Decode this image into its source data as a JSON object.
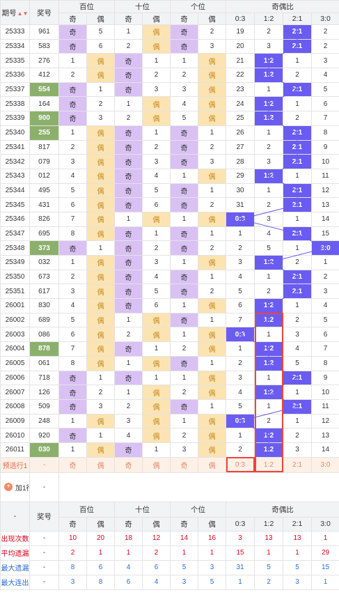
{
  "header": {
    "issue_label": "期号",
    "number_label": "奖号",
    "groups": [
      "百位",
      "十位",
      "个位",
      "奇偶比"
    ],
    "odd": "奇",
    "even": "偶",
    "ratios": [
      "0:3",
      "1:2",
      "2:1",
      "3:0"
    ]
  },
  "rows": [
    {
      "issue": "25333",
      "num": "961",
      "hl": false,
      "b": [
        "奇",
        "5"
      ],
      "s": [
        "1",
        "偶"
      ],
      "g": [
        "奇",
        "2"
      ],
      "r": [
        "19",
        "2",
        "2:1",
        "2"
      ],
      "hit": 2
    },
    {
      "issue": "25334",
      "num": "583",
      "hl": false,
      "b": [
        "奇",
        "6"
      ],
      "s": [
        "2",
        "偶"
      ],
      "g": [
        "奇",
        "3"
      ],
      "r": [
        "20",
        "3",
        "2:1",
        "2"
      ],
      "hit": 2
    },
    {
      "issue": "25335",
      "num": "276",
      "hl": false,
      "b": [
        "1",
        "偶"
      ],
      "s": [
        "奇",
        "1"
      ],
      "g": [
        "1",
        "偶"
      ],
      "r": [
        "21",
        "1:2",
        "1",
        "3"
      ],
      "hit": 1
    },
    {
      "issue": "25336",
      "num": "412",
      "hl": false,
      "b": [
        "2",
        "偶"
      ],
      "s": [
        "奇",
        "2"
      ],
      "g": [
        "2",
        "偶"
      ],
      "r": [
        "22",
        "1:2",
        "2",
        "4"
      ],
      "hit": 1
    },
    {
      "issue": "25337",
      "num": "554",
      "hl": true,
      "b": [
        "奇",
        "1"
      ],
      "s": [
        "奇",
        "3"
      ],
      "g": [
        "3",
        "偶"
      ],
      "r": [
        "23",
        "1",
        "2:1",
        "5"
      ],
      "hit": 2
    },
    {
      "issue": "25338",
      "num": "164",
      "hl": false,
      "b": [
        "奇",
        "2"
      ],
      "s": [
        "1",
        "偶"
      ],
      "g": [
        "4",
        "偶"
      ],
      "r": [
        "24",
        "1:2",
        "1",
        "6"
      ],
      "hit": 1,
      "sep": true
    },
    {
      "issue": "25339",
      "num": "900",
      "hl": true,
      "b": [
        "奇",
        "3"
      ],
      "s": [
        "2",
        "偶"
      ],
      "g": [
        "5",
        "偶"
      ],
      "r": [
        "25",
        "1:2",
        "2",
        "7"
      ],
      "hit": 1
    },
    {
      "issue": "25340",
      "num": "255",
      "hl": true,
      "b": [
        "1",
        "偶"
      ],
      "s": [
        "奇",
        "1"
      ],
      "g": [
        "奇",
        "1"
      ],
      "r": [
        "26",
        "1",
        "2:1",
        "8"
      ],
      "hit": 2
    },
    {
      "issue": "25341",
      "num": "817",
      "hl": false,
      "b": [
        "2",
        "偶"
      ],
      "s": [
        "奇",
        "2"
      ],
      "g": [
        "奇",
        "2"
      ],
      "r": [
        "27",
        "2",
        "2:1",
        "9"
      ],
      "hit": 2
    },
    {
      "issue": "25342",
      "num": "079",
      "hl": false,
      "b": [
        "3",
        "偶"
      ],
      "s": [
        "奇",
        "3"
      ],
      "g": [
        "奇",
        "3"
      ],
      "r": [
        "28",
        "3",
        "2:1",
        "10"
      ],
      "hit": 2
    },
    {
      "issue": "25343",
      "num": "012",
      "hl": false,
      "b": [
        "4",
        "偶"
      ],
      "s": [
        "奇",
        "4"
      ],
      "g": [
        "1",
        "偶"
      ],
      "r": [
        "29",
        "1:2",
        "1",
        "11"
      ],
      "hit": 1,
      "sep": true
    },
    {
      "issue": "25344",
      "num": "495",
      "hl": false,
      "b": [
        "5",
        "偶"
      ],
      "s": [
        "奇",
        "5"
      ],
      "g": [
        "奇",
        "1"
      ],
      "r": [
        "30",
        "1",
        "2:1",
        "12"
      ],
      "hit": 2
    },
    {
      "issue": "25345",
      "num": "431",
      "hl": false,
      "b": [
        "6",
        "偶"
      ],
      "s": [
        "奇",
        "6"
      ],
      "g": [
        "奇",
        "2"
      ],
      "r": [
        "31",
        "2",
        "2:1",
        "13"
      ],
      "hit": 2
    },
    {
      "issue": "25346",
      "num": "826",
      "hl": false,
      "b": [
        "7",
        "偶"
      ],
      "s": [
        "1",
        "偶"
      ],
      "g": [
        "1",
        "偶"
      ],
      "r": [
        "0:3",
        "3",
        "1",
        "14"
      ],
      "hit": 0
    },
    {
      "issue": "25347",
      "num": "695",
      "hl": false,
      "b": [
        "8",
        "偶"
      ],
      "s": [
        "奇",
        "1"
      ],
      "g": [
        "奇",
        "1"
      ],
      "r": [
        "1",
        "4",
        "2:1",
        "15"
      ],
      "hit": 2
    },
    {
      "issue": "25348",
      "num": "373",
      "hl": true,
      "b": [
        "奇",
        "1"
      ],
      "s": [
        "奇",
        "2"
      ],
      "g": [
        "奇",
        "2"
      ],
      "r": [
        "2",
        "5",
        "1",
        "3:0"
      ],
      "hit": 3,
      "sep": true
    },
    {
      "issue": "25349",
      "num": "032",
      "hl": false,
      "b": [
        "1",
        "偶"
      ],
      "s": [
        "奇",
        "3"
      ],
      "g": [
        "1",
        "偶"
      ],
      "r": [
        "3",
        "1:2",
        "2",
        "1"
      ],
      "hit": 1
    },
    {
      "issue": "25350",
      "num": "673",
      "hl": false,
      "b": [
        "2",
        "偶"
      ],
      "s": [
        "奇",
        "4"
      ],
      "g": [
        "奇",
        "1"
      ],
      "r": [
        "4",
        "1",
        "2:1",
        "2"
      ],
      "hit": 2
    },
    {
      "issue": "25351",
      "num": "617",
      "hl": false,
      "b": [
        "3",
        "偶"
      ],
      "s": [
        "奇",
        "5"
      ],
      "g": [
        "奇",
        "2"
      ],
      "r": [
        "5",
        "2",
        "2:1",
        "3"
      ],
      "hit": 2
    },
    {
      "issue": "26001",
      "num": "830",
      "hl": false,
      "b": [
        "4",
        "偶"
      ],
      "s": [
        "奇",
        "6"
      ],
      "g": [
        "1",
        "偶"
      ],
      "r": [
        "6",
        "1:2",
        "1",
        "4"
      ],
      "hit": 1
    },
    {
      "issue": "26002",
      "num": "689",
      "hl": false,
      "b": [
        "5",
        "偶"
      ],
      "s": [
        "1",
        "偶"
      ],
      "g": [
        "奇",
        "1"
      ],
      "r": [
        "7",
        "1:2",
        "2",
        "5"
      ],
      "hit": 1,
      "sep": true
    },
    {
      "issue": "26003",
      "num": "086",
      "hl": false,
      "b": [
        "6",
        "偶"
      ],
      "s": [
        "2",
        "偶"
      ],
      "g": [
        "1",
        "偶"
      ],
      "r": [
        "0:3",
        "1",
        "3",
        "6"
      ],
      "hit": 0
    },
    {
      "issue": "26004",
      "num": "878",
      "hl": true,
      "b": [
        "7",
        "偶"
      ],
      "s": [
        "奇",
        "1"
      ],
      "g": [
        "2",
        "偶"
      ],
      "r": [
        "1",
        "1:2",
        "4",
        "7"
      ],
      "hit": 1
    },
    {
      "issue": "26005",
      "num": "061",
      "hl": false,
      "b": [
        "8",
        "偶"
      ],
      "s": [
        "1",
        "偶"
      ],
      "g": [
        "奇",
        "1"
      ],
      "r": [
        "2",
        "1:2",
        "5",
        "8"
      ],
      "hit": 1
    },
    {
      "issue": "26006",
      "num": "718",
      "hl": false,
      "b": [
        "奇",
        "1"
      ],
      "s": [
        "奇",
        "1"
      ],
      "g": [
        "1",
        "偶"
      ],
      "r": [
        "3",
        "1",
        "2:1",
        "9"
      ],
      "hit": 2
    },
    {
      "issue": "26007",
      "num": "126",
      "hl": false,
      "b": [
        "奇",
        "2"
      ],
      "s": [
        "1",
        "偶"
      ],
      "g": [
        "2",
        "偶"
      ],
      "r": [
        "4",
        "1:2",
        "1",
        "10"
      ],
      "hit": 1,
      "sep": true
    },
    {
      "issue": "26008",
      "num": "509",
      "hl": false,
      "b": [
        "奇",
        "3"
      ],
      "s": [
        "2",
        "偶"
      ],
      "g": [
        "奇",
        "1"
      ],
      "r": [
        "5",
        "1",
        "2:1",
        "11"
      ],
      "hit": 2
    },
    {
      "issue": "26009",
      "num": "248",
      "hl": false,
      "b": [
        "1",
        "偶"
      ],
      "s": [
        "3",
        "偶"
      ],
      "g": [
        "1",
        "偶"
      ],
      "r": [
        "0:3",
        "2",
        "1",
        "12"
      ],
      "hit": 0
    },
    {
      "issue": "26010",
      "num": "920",
      "hl": false,
      "b": [
        "奇",
        "1"
      ],
      "s": [
        "4",
        "偶"
      ],
      "g": [
        "2",
        "偶"
      ],
      "r": [
        "1",
        "1:2",
        "2",
        "13"
      ],
      "hit": 1
    },
    {
      "issue": "26011",
      "num": "030",
      "hl": true,
      "b": [
        "1",
        "偶"
      ],
      "s": [
        "奇",
        "1"
      ],
      "g": [
        "3",
        "偶"
      ],
      "r": [
        "2",
        "1:2",
        "3",
        "14"
      ],
      "hit": 1
    }
  ],
  "predict": {
    "label": "预选行1",
    "num": "-",
    "cells": [
      "奇",
      "偶",
      "奇",
      "偶",
      "奇",
      "偶",
      "0:3",
      "1:2",
      "2:1",
      "3:0"
    ]
  },
  "add_row": {
    "label": "加1行",
    "icon": "plus-icon",
    "dash": "-"
  },
  "footer_header": {
    "dash": "-",
    "number_label": "奖号"
  },
  "stats": [
    {
      "label": "出现次数",
      "cls": "stat-red",
      "num": "-",
      "vals": [
        "10",
        "20",
        "18",
        "12",
        "14",
        "16",
        "3",
        "13",
        "13",
        "1"
      ]
    },
    {
      "label": "平均遗漏",
      "cls": "stat-red",
      "num": "-",
      "vals": [
        "2",
        "1",
        "1",
        "2",
        "1",
        "1",
        "15",
        "1",
        "1",
        "29"
      ]
    },
    {
      "label": "最大遗漏",
      "cls": "stat-blue",
      "num": "-",
      "vals": [
        "8",
        "6",
        "4",
        "6",
        "5",
        "3",
        "31",
        "5",
        "5",
        "15"
      ]
    },
    {
      "label": "最大连出",
      "cls": "stat-blue",
      "num": "-",
      "vals": [
        "3",
        "8",
        "6",
        "4",
        "3",
        "5",
        "1",
        "2",
        "3",
        "1"
      ]
    }
  ],
  "colors": {
    "odd": "#d9c1f3",
    "even": "#fbe3b2",
    "hit": "#6a5cf0",
    "highlight_num": "#8bb06c",
    "frame": "#f0443a"
  }
}
